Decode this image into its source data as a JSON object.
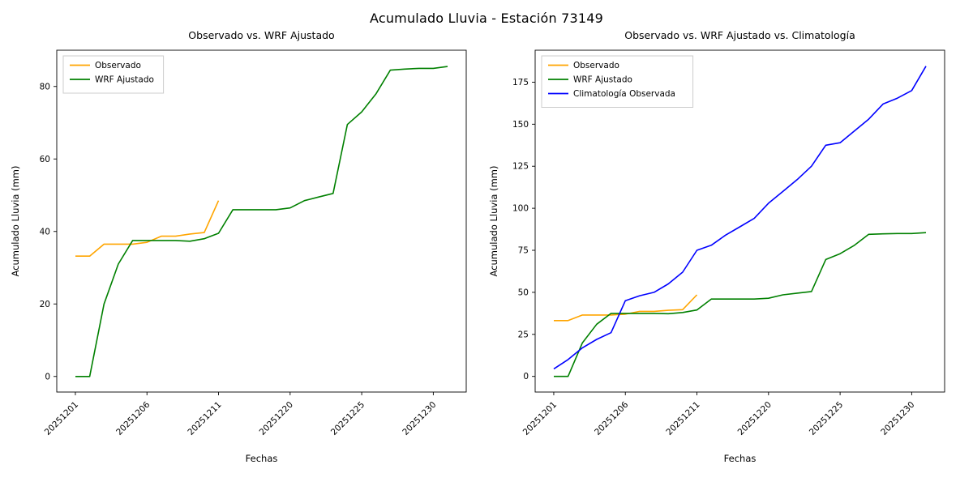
{
  "page_title": "Acumulado Lluvia - Estación 73149",
  "chart_data": [
    {
      "type": "line",
      "title": "Observado vs. WRF Ajustado",
      "xlabel": "Fechas",
      "ylabel": "Acumulado Lluvia (mm)",
      "x": [
        "20251201",
        "20251202",
        "20251203",
        "20251204",
        "20251205",
        "20251206",
        "20251207",
        "20251208",
        "20251209",
        "20251210",
        "20251211",
        "20251216",
        "20251217",
        "20251218",
        "20251219",
        "20251220",
        "20251221",
        "20251222",
        "20251223",
        "20251224",
        "20251225",
        "20251226",
        "20251227",
        "20251228",
        "20251229",
        "20251230",
        "20251231"
      ],
      "x_tick_indices": [
        0,
        5,
        10,
        15,
        20,
        25
      ],
      "x_tick_labels": [
        "20251201",
        "20251206",
        "20251211",
        "20251220",
        "20251225",
        "20251230"
      ],
      "y_ticks": [
        0,
        20,
        40,
        60,
        80
      ],
      "ylim": [
        -4.3,
        90
      ],
      "legend_position": "upper left",
      "grid": false,
      "series": [
        {
          "name": "Observado",
          "color": "#ffa500",
          "values": [
            33.2,
            33.2,
            36.5,
            36.5,
            36.5,
            37.0,
            38.7,
            38.7,
            39.3,
            39.7,
            48.5,
            null,
            null,
            null,
            null,
            null,
            null,
            null,
            null,
            null,
            null,
            null,
            null,
            null,
            null,
            null,
            null
          ]
        },
        {
          "name": "WRF Ajustado",
          "color": "#008000",
          "values": [
            0,
            0,
            20,
            31,
            37.5,
            37.5,
            37.5,
            37.5,
            37.3,
            38.0,
            39.5,
            46.0,
            46.0,
            46.0,
            46.0,
            46.5,
            48.5,
            49.5,
            50.5,
            69.5,
            73.0,
            78.0,
            84.5,
            84.8,
            85.0,
            85.0,
            85.5
          ]
        }
      ]
    },
    {
      "type": "line",
      "title": "Observado vs. WRF Ajustado vs. Climatología",
      "xlabel": "Fechas",
      "ylabel": "Acumulado Lluvia (mm)",
      "x": [
        "20251201",
        "20251202",
        "20251203",
        "20251204",
        "20251205",
        "20251206",
        "20251207",
        "20251208",
        "20251209",
        "20251210",
        "20251211",
        "20251216",
        "20251217",
        "20251218",
        "20251219",
        "20251220",
        "20251221",
        "20251222",
        "20251223",
        "20251224",
        "20251225",
        "20251226",
        "20251227",
        "20251228",
        "20251229",
        "20251230",
        "20251231"
      ],
      "x_tick_indices": [
        0,
        5,
        10,
        15,
        20,
        25
      ],
      "x_tick_labels": [
        "20251201",
        "20251206",
        "20251211",
        "20251220",
        "20251225",
        "20251230"
      ],
      "y_ticks": [
        0,
        25,
        50,
        75,
        100,
        125,
        150,
        175
      ],
      "ylim": [
        -9.3,
        194
      ],
      "legend_position": "upper left",
      "grid": false,
      "series": [
        {
          "name": "Observado",
          "color": "#ffa500",
          "values": [
            33.2,
            33.2,
            36.5,
            36.5,
            36.5,
            37.0,
            38.7,
            38.7,
            39.3,
            39.7,
            48.5,
            null,
            null,
            null,
            null,
            null,
            null,
            null,
            null,
            null,
            null,
            null,
            null,
            null,
            null,
            null,
            null
          ]
        },
        {
          "name": "WRF Ajustado",
          "color": "#008000",
          "values": [
            0,
            0,
            20,
            31,
            37.5,
            37.5,
            37.5,
            37.5,
            37.3,
            38.0,
            39.5,
            46.0,
            46.0,
            46.0,
            46.0,
            46.5,
            48.5,
            49.5,
            50.5,
            69.5,
            73.0,
            78.0,
            84.5,
            84.8,
            85.0,
            85.0,
            85.5
          ]
        },
        {
          "name": "Climatología Observada",
          "color": "#0000ff",
          "values": [
            4.5,
            10,
            17,
            22,
            26,
            45,
            48,
            50,
            55,
            62,
            75,
            78,
            84,
            89,
            94,
            103,
            110,
            117,
            125,
            137.5,
            139,
            146,
            153,
            162,
            165.5,
            170,
            184.5
          ]
        }
      ]
    }
  ]
}
